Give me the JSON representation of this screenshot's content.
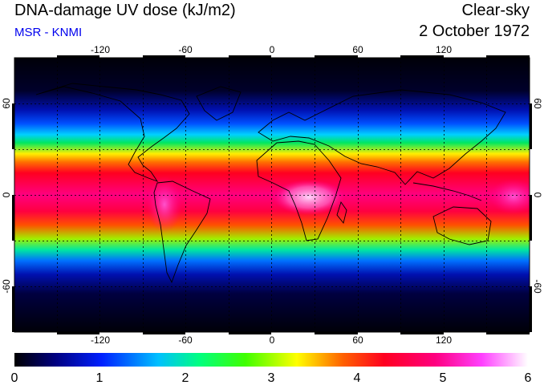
{
  "header": {
    "title": "DNA-damage UV dose (kJ/m2)",
    "subtitle": "MSR - KNMI",
    "condition": "Clear-sky",
    "date": "2 October 1972"
  },
  "map": {
    "lon_ticks": [
      "-120",
      "-60",
      "0",
      "60",
      "120"
    ],
    "lat_ticks_left": [
      "60",
      "0",
      "-60"
    ],
    "lat_ticks_right": [
      "60",
      "0",
      "-60"
    ]
  },
  "colorbar": {
    "labels": [
      "0",
      "1",
      "2",
      "3",
      "4",
      "5",
      "6"
    ],
    "min": 0,
    "max": 6
  },
  "colors": {
    "polar": "#000010",
    "low": "#1a1aff",
    "mid": "#00e000",
    "high": "#ff0040",
    "peak": "#ffd0f0"
  }
}
